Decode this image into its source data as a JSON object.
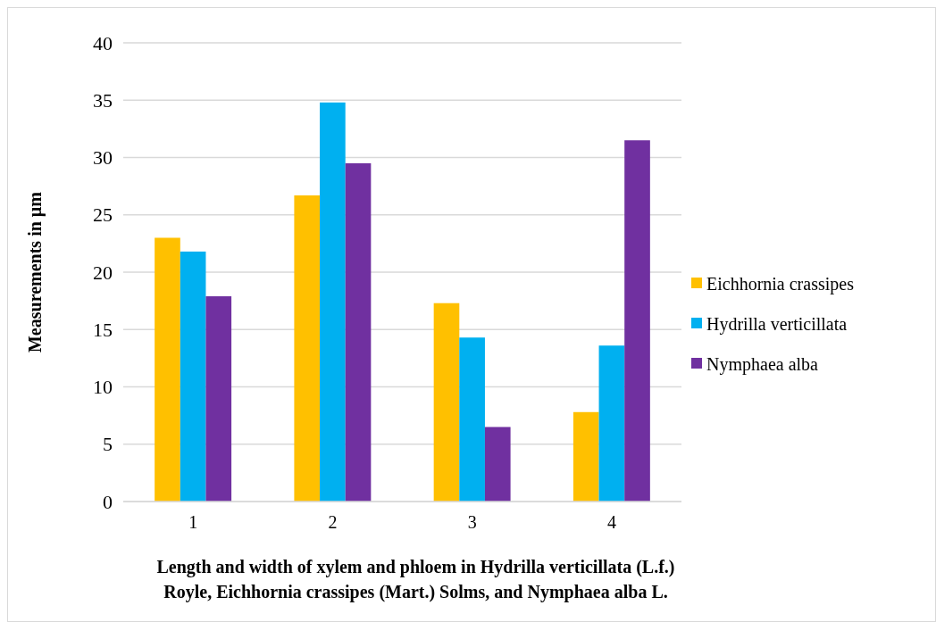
{
  "chart_data": {
    "type": "bar",
    "xlabel": "Length and width of xylem and phloem in Hydrilla verticillata (L.f.) Royle, Eichhornia crassipes (Mart.) Solms, and Nymphaea alba L.",
    "ylabel": "Measurements in µm",
    "categories": [
      "1",
      "2",
      "3",
      "4"
    ],
    "series": [
      {
        "name": "Eichhornia crassipes",
        "color": "#ffc000",
        "values": [
          23.0,
          26.7,
          17.3,
          7.8
        ]
      },
      {
        "name": "Hydrilla verticillata",
        "color": "#00b0f0",
        "values": [
          21.8,
          34.8,
          14.3,
          13.6
        ]
      },
      {
        "name": "Nymphaea alba",
        "color": "#7030a0",
        "values": [
          17.9,
          29.5,
          6.5,
          31.5
        ]
      }
    ],
    "ylim": [
      0,
      40
    ],
    "yticks": [
      0,
      5,
      10,
      15,
      20,
      25,
      30,
      35,
      40
    ],
    "grid": "y",
    "legend": "right"
  }
}
